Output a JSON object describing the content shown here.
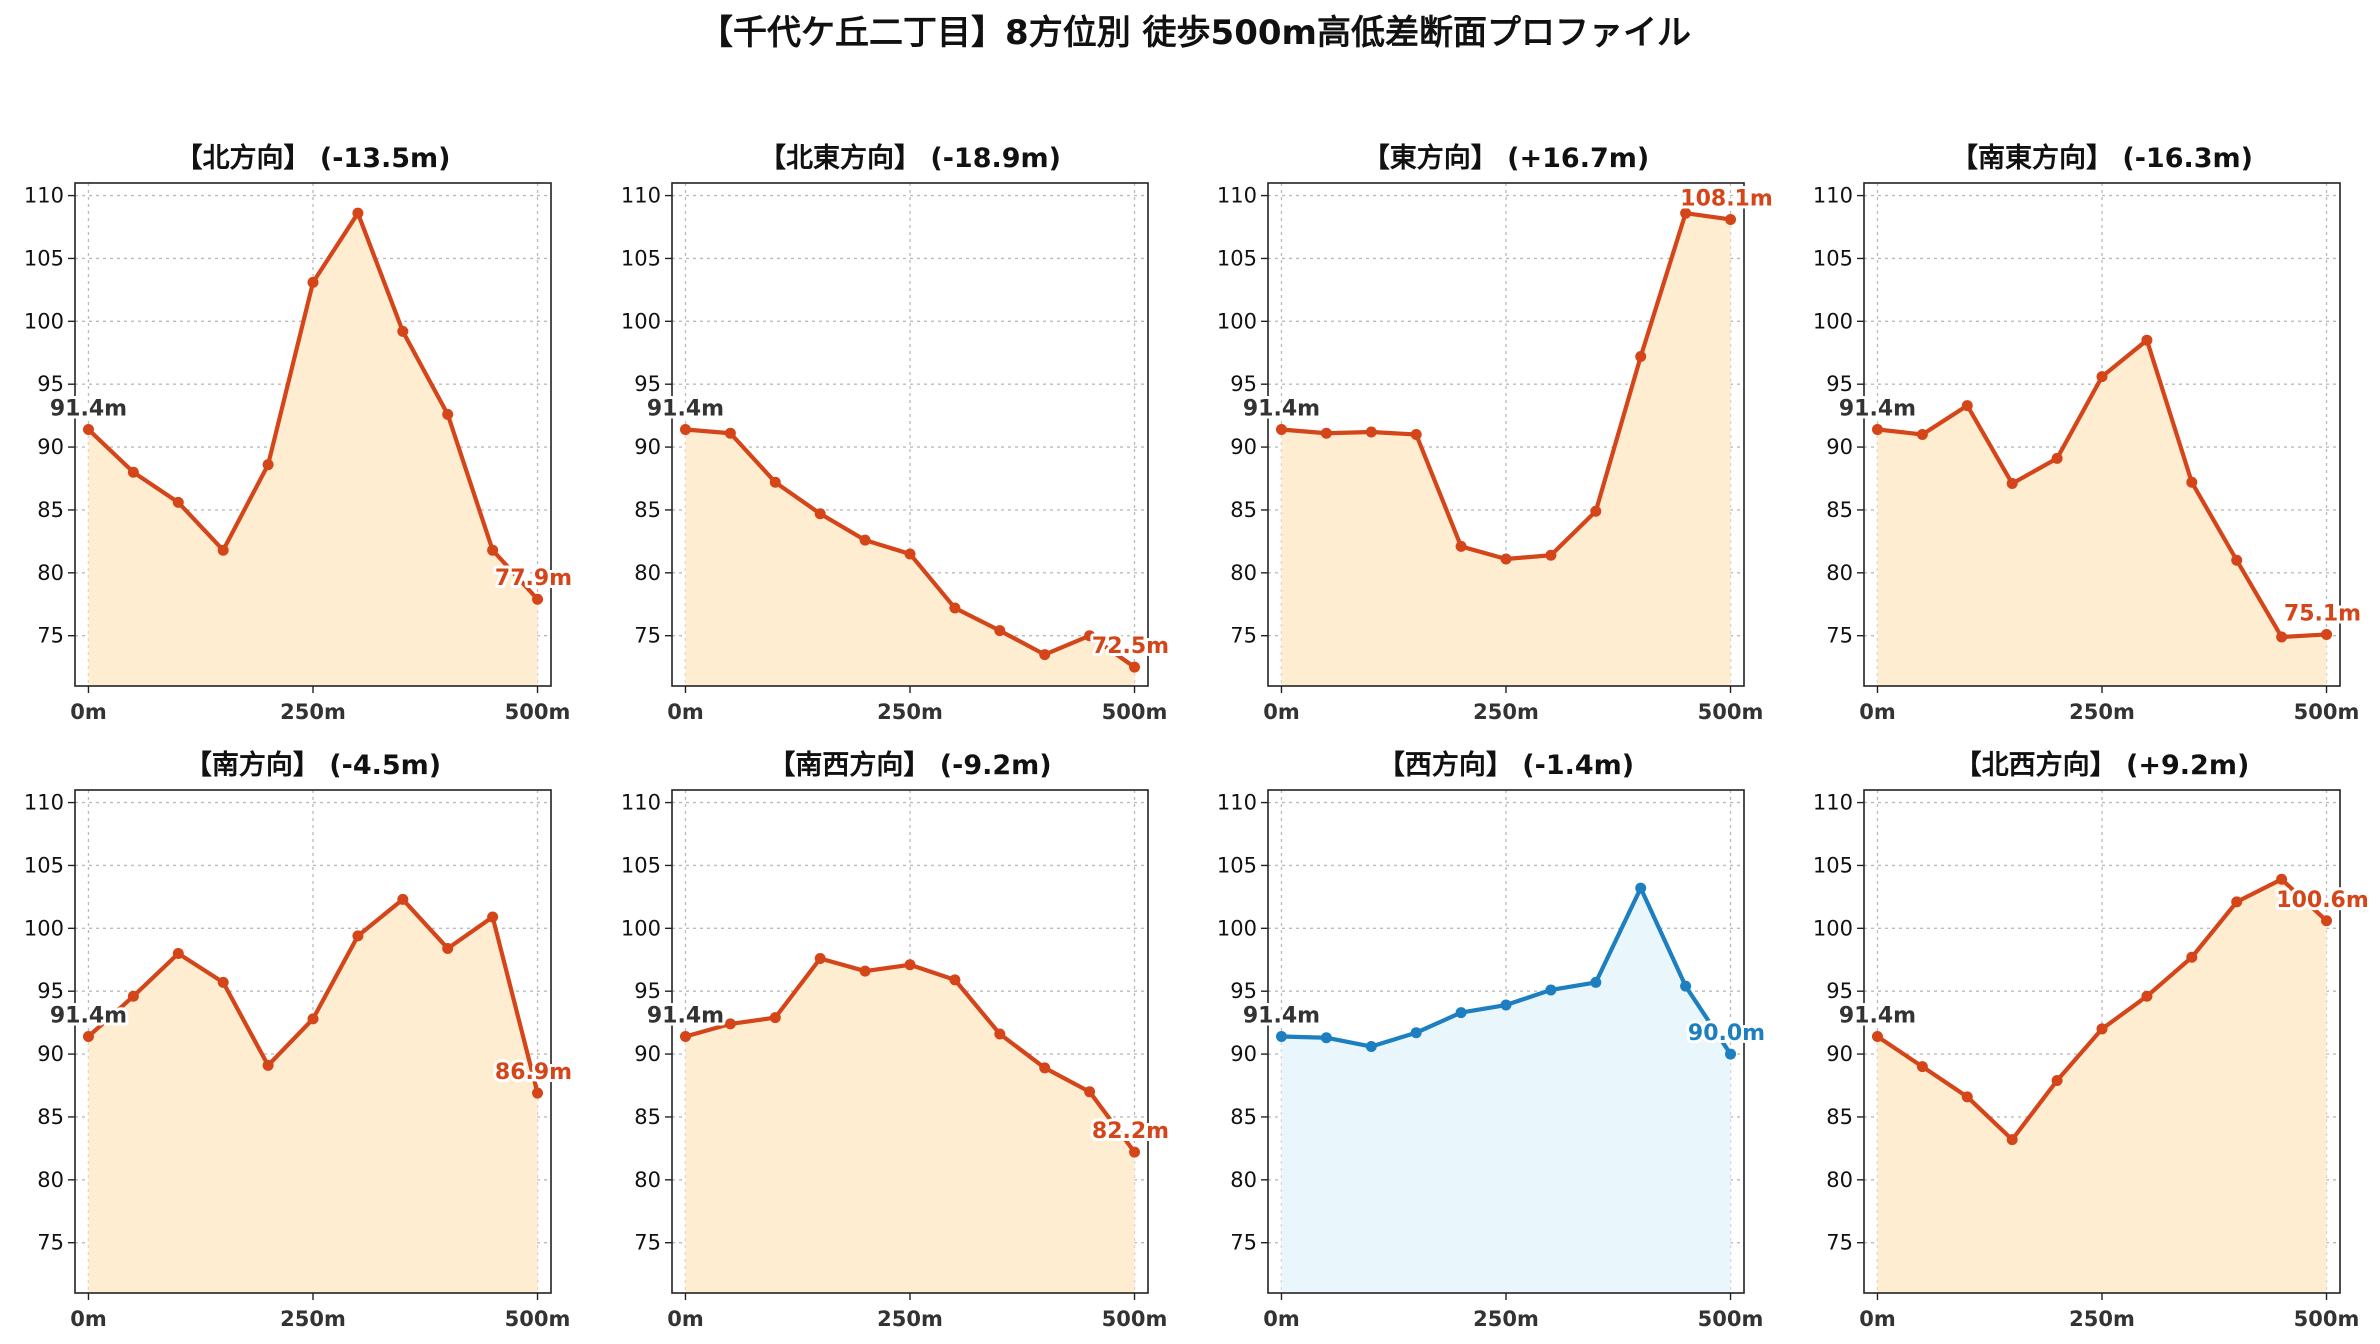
{
  "title": "【千代ケ丘二丁目】8方位別 徒歩500m高低差断面プロファイル",
  "colors": {
    "up_line": "#d4451a",
    "up_fill": "#ffedd2",
    "down_line": "#1d7fbf",
    "down_fill": "#e9f6fc",
    "start_label": "#333333"
  },
  "chart_data": [
    {
      "type": "area",
      "title": "【北方向】 (-13.5m)",
      "x": [
        0,
        50,
        100,
        150,
        200,
        250,
        300,
        350,
        400,
        450,
        500
      ],
      "y": [
        91.4,
        88.0,
        85.6,
        81.8,
        88.6,
        103.1,
        108.6,
        99.2,
        92.6,
        81.8,
        77.9
      ],
      "xticks": [
        "0m",
        "250m",
        "500m"
      ],
      "yticks": [
        75,
        80,
        85,
        90,
        95,
        100,
        105,
        110
      ],
      "xlim": [
        -15,
        515
      ],
      "ylim": [
        71,
        111
      ],
      "start_label": "91.4m",
      "end_label": "77.9m",
      "style": "up"
    },
    {
      "type": "area",
      "title": "【北東方向】 (-18.9m)",
      "x": [
        0,
        50,
        100,
        150,
        200,
        250,
        300,
        350,
        400,
        450,
        500
      ],
      "y": [
        91.4,
        91.1,
        87.2,
        84.7,
        82.6,
        81.5,
        77.2,
        75.4,
        73.5,
        75.0,
        72.5
      ],
      "xticks": [
        "0m",
        "250m",
        "500m"
      ],
      "yticks": [
        75,
        80,
        85,
        90,
        95,
        100,
        105,
        110
      ],
      "xlim": [
        -15,
        515
      ],
      "ylim": [
        71,
        111
      ],
      "start_label": "91.4m",
      "end_label": "72.5m",
      "style": "up"
    },
    {
      "type": "area",
      "title": "【東方向】 (+16.7m)",
      "x": [
        0,
        50,
        100,
        150,
        200,
        250,
        300,
        350,
        400,
        450,
        500
      ],
      "y": [
        91.4,
        91.1,
        91.2,
        91.0,
        82.1,
        81.1,
        81.4,
        84.9,
        97.2,
        108.6,
        108.1
      ],
      "xticks": [
        "0m",
        "250m",
        "500m"
      ],
      "yticks": [
        75,
        80,
        85,
        90,
        95,
        100,
        105,
        110
      ],
      "xlim": [
        -15,
        515
      ],
      "ylim": [
        71,
        111
      ],
      "start_label": "91.4m",
      "end_label": "108.1m",
      "style": "up"
    },
    {
      "type": "area",
      "title": "【南東方向】 (-16.3m)",
      "x": [
        0,
        50,
        100,
        150,
        200,
        250,
        300,
        350,
        400,
        450,
        500
      ],
      "y": [
        91.4,
        91.0,
        93.3,
        87.1,
        89.1,
        95.6,
        98.5,
        87.2,
        81.0,
        74.9,
        75.1
      ],
      "xticks": [
        "0m",
        "250m",
        "500m"
      ],
      "yticks": [
        75,
        80,
        85,
        90,
        95,
        100,
        105,
        110
      ],
      "xlim": [
        -15,
        515
      ],
      "ylim": [
        71,
        111
      ],
      "start_label": "91.4m",
      "end_label": "75.1m",
      "style": "up"
    },
    {
      "type": "area",
      "title": "【南方向】 (-4.5m)",
      "x": [
        0,
        50,
        100,
        150,
        200,
        250,
        300,
        350,
        400,
        450,
        500
      ],
      "y": [
        91.4,
        94.6,
        98.0,
        95.7,
        89.1,
        92.8,
        99.4,
        102.3,
        98.4,
        100.9,
        86.9
      ],
      "xticks": [
        "0m",
        "250m",
        "500m"
      ],
      "yticks": [
        75,
        80,
        85,
        90,
        95,
        100,
        105,
        110
      ],
      "xlim": [
        -15,
        515
      ],
      "ylim": [
        71,
        111
      ],
      "start_label": "91.4m",
      "end_label": "86.9m",
      "style": "up"
    },
    {
      "type": "area",
      "title": "【南西方向】 (-9.2m)",
      "x": [
        0,
        50,
        100,
        150,
        200,
        250,
        300,
        350,
        400,
        450,
        500
      ],
      "y": [
        91.4,
        92.4,
        92.9,
        97.6,
        96.6,
        97.1,
        95.9,
        91.6,
        88.9,
        87.0,
        82.2
      ],
      "xticks": [
        "0m",
        "250m",
        "500m"
      ],
      "yticks": [
        75,
        80,
        85,
        90,
        95,
        100,
        105,
        110
      ],
      "xlim": [
        -15,
        515
      ],
      "ylim": [
        71,
        111
      ],
      "start_label": "91.4m",
      "end_label": "82.2m",
      "style": "up"
    },
    {
      "type": "area",
      "title": "【西方向】 (-1.4m)",
      "x": [
        0,
        50,
        100,
        150,
        200,
        250,
        300,
        350,
        400,
        450,
        500
      ],
      "y": [
        91.4,
        91.3,
        90.6,
        91.7,
        93.3,
        93.9,
        95.1,
        95.7,
        103.2,
        95.4,
        90.0
      ],
      "xticks": [
        "0m",
        "250m",
        "500m"
      ],
      "yticks": [
        75,
        80,
        85,
        90,
        95,
        100,
        105,
        110
      ],
      "xlim": [
        -15,
        515
      ],
      "ylim": [
        71,
        111
      ],
      "start_label": "91.4m",
      "end_label": "90.0m",
      "style": "down"
    },
    {
      "type": "area",
      "title": "【北西方向】 (+9.2m)",
      "x": [
        0,
        50,
        100,
        150,
        200,
        250,
        300,
        350,
        400,
        450,
        500
      ],
      "y": [
        91.4,
        89.0,
        86.6,
        83.2,
        87.9,
        92.0,
        94.6,
        97.7,
        102.1,
        103.9,
        100.6
      ],
      "xticks": [
        "0m",
        "250m",
        "500m"
      ],
      "yticks": [
        75,
        80,
        85,
        90,
        95,
        100,
        105,
        110
      ],
      "xlim": [
        -15,
        515
      ],
      "ylim": [
        71,
        111
      ],
      "start_label": "91.4m",
      "end_label": "100.6m",
      "style": "up"
    }
  ]
}
